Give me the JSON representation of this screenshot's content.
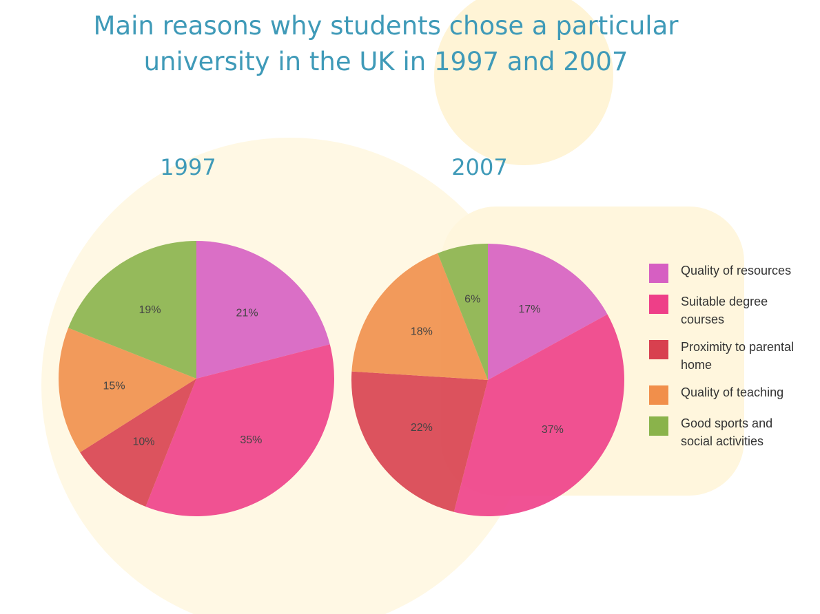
{
  "title": "Main reasons why students chose a particular university in the UK in 1997 and 2007",
  "chart_data": [
    {
      "type": "pie",
      "title": "1997",
      "categories": [
        "Quality of resources",
        "Suitable degree courses",
        "Proximity to parental home",
        "Quality of teaching",
        "Good sports and social activities"
      ],
      "values": [
        21,
        35,
        10,
        15,
        19
      ],
      "value_labels": [
        "21%",
        "35%",
        "10%",
        "15%",
        "19%"
      ],
      "colors": [
        "#d65fc2",
        "#ee3f88",
        "#d8404f",
        "#f18f4b",
        "#8ab34b"
      ]
    },
    {
      "type": "pie",
      "title": "2007",
      "categories": [
        "Quality of resources",
        "Suitable degree courses",
        "Proximity to parental home",
        "Quality of teaching",
        "Good sports and social activities"
      ],
      "values": [
        17,
        37,
        22,
        18,
        6
      ],
      "value_labels": [
        "17%",
        "37%",
        "22%",
        "18%",
        "6%"
      ],
      "colors": [
        "#d65fc2",
        "#ee3f88",
        "#d8404f",
        "#f18f4b",
        "#8ab34b"
      ]
    }
  ]
}
